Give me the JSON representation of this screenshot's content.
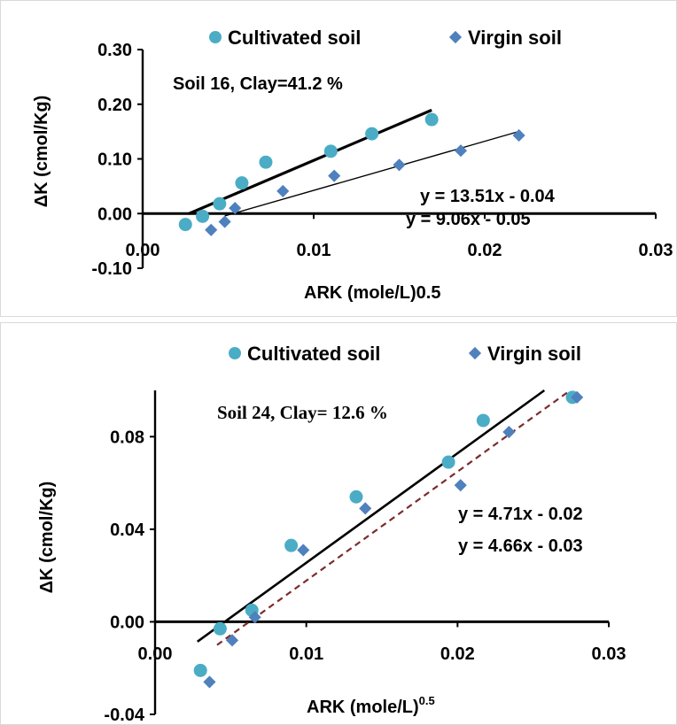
{
  "chart_data": [
    {
      "type": "scatter",
      "title": "",
      "annotation": "Soil 16, Clay=41.2 %",
      "xlabel": "ARK (mole/L)0.5",
      "ylabel": "ΔK (cmol/Kg)",
      "xlim": [
        0,
        0.03
      ],
      "ylim": [
        -0.1,
        0.3
      ],
      "xticks": [
        0,
        0.01,
        0.02,
        0.03
      ],
      "xtick_labels": [
        "0.00",
        "0.01",
        "0.02",
        "0.03"
      ],
      "yticks": [
        -0.1,
        0,
        0.1,
        0.2,
        0.3
      ],
      "ytick_labels": [
        "-0.10",
        "0.00",
        "0.10",
        "0.20",
        "0.30"
      ],
      "legend_position": "top",
      "series": [
        {
          "name": "Cultivated soil",
          "marker": "circle",
          "color": "#4bacc6",
          "points": [
            [
              0.0025,
              -0.02
            ],
            [
              0.0035,
              -0.005
            ],
            [
              0.0045,
              0.018
            ],
            [
              0.0058,
              0.056
            ],
            [
              0.0072,
              0.094
            ],
            [
              0.011,
              0.114
            ],
            [
              0.0134,
              0.146
            ],
            [
              0.0169,
              0.172
            ]
          ],
          "trendline": {
            "equation": "y = 13.51x - 0.04",
            "x_range": [
              0.0027,
              0.0169
            ],
            "style": "solid-thick",
            "color": "#000000"
          }
        },
        {
          "name": "Virgin soil",
          "marker": "diamond",
          "color": "#4f81bd",
          "points": [
            [
              0.004,
              -0.03
            ],
            [
              0.0048,
              -0.015
            ],
            [
              0.0054,
              0.01
            ],
            [
              0.0082,
              0.041
            ],
            [
              0.0112,
              0.069
            ],
            [
              0.015,
              0.089
            ],
            [
              0.0186,
              0.115
            ],
            [
              0.022,
              0.143
            ]
          ],
          "trendline": {
            "equation": "y = 9.06x - 0.05",
            "x_range": [
              0.0048,
              0.022
            ],
            "style": "solid-thin",
            "color": "#000000"
          }
        }
      ]
    },
    {
      "type": "scatter",
      "title": "",
      "annotation": "Soil 24, Clay= 12.6 %",
      "xlabel": "ARK (mole/L)",
      "xlabel_superscript": "0.5",
      "ylabel": "ΔK (cmol/Kg)",
      "xlim": [
        0,
        0.03
      ],
      "ylim": [
        -0.04,
        0.1
      ],
      "xticks": [
        0,
        0.01,
        0.02,
        0.03
      ],
      "xtick_labels": [
        "0.00",
        "0.01",
        "0.02",
        "0.03"
      ],
      "yticks": [
        -0.04,
        0,
        0.04,
        0.08
      ],
      "ytick_labels": [
        "-0.04",
        "0.00",
        "0.04",
        "0.08"
      ],
      "legend_position": "top",
      "series": [
        {
          "name": "Cultivated soil",
          "marker": "circle",
          "color": "#4bacc6",
          "points": [
            [
              0.003,
              -0.021
            ],
            [
              0.0043,
              -0.003
            ],
            [
              0.0064,
              0.005
            ],
            [
              0.009,
              0.033
            ],
            [
              0.0133,
              0.054
            ],
            [
              0.0194,
              0.069
            ],
            [
              0.0217,
              0.087
            ],
            [
              0.0276,
              0.097
            ]
          ],
          "trendline": {
            "equation": "y = 4.71x - 0.02",
            "x_range": [
              0.0028,
              0.0273
            ],
            "style": "solid",
            "color": "#000000"
          }
        },
        {
          "name": "Virgin soil",
          "marker": "diamond",
          "color": "#4f81bd",
          "points": [
            [
              0.0036,
              -0.026
            ],
            [
              0.0051,
              -0.008
            ],
            [
              0.0066,
              0.002
            ],
            [
              0.0098,
              0.031
            ],
            [
              0.0139,
              0.049
            ],
            [
              0.0202,
              0.059
            ],
            [
              0.0234,
              0.082
            ],
            [
              0.0279,
              0.097
            ]
          ],
          "trendline": {
            "equation": "y = 4.66x - 0.03",
            "x_range": [
              0.0041,
              0.0279
            ],
            "style": "dashed",
            "color": "#7b2b2b"
          }
        }
      ]
    }
  ]
}
